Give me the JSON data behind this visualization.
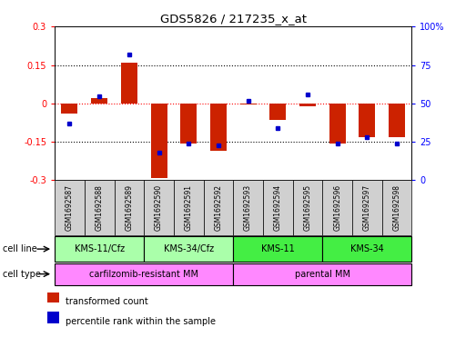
{
  "title": "GDS5826 / 217235_x_at",
  "samples": [
    "GSM1692587",
    "GSM1692588",
    "GSM1692589",
    "GSM1692590",
    "GSM1692591",
    "GSM1692592",
    "GSM1692593",
    "GSM1692594",
    "GSM1692595",
    "GSM1692596",
    "GSM1692597",
    "GSM1692598"
  ],
  "transformed_count": [
    -0.04,
    0.02,
    0.16,
    -0.29,
    -0.155,
    -0.185,
    -0.005,
    -0.065,
    -0.01,
    -0.155,
    -0.13,
    -0.13
  ],
  "percentile_rank": [
    37,
    55,
    82,
    18,
    24,
    23,
    52,
    34,
    56,
    24,
    28,
    24
  ],
  "cell_line_groups": [
    {
      "label": "KMS-11/Cfz",
      "start": 0,
      "end": 2,
      "color": "#aaffaa"
    },
    {
      "label": "KMS-34/Cfz",
      "start": 3,
      "end": 5,
      "color": "#aaffaa"
    },
    {
      "label": "KMS-11",
      "start": 6,
      "end": 8,
      "color": "#44ee44"
    },
    {
      "label": "KMS-34",
      "start": 9,
      "end": 11,
      "color": "#44ee44"
    }
  ],
  "cell_type_groups": [
    {
      "label": "carfilzomib-resistant MM",
      "start": 0,
      "end": 5,
      "color": "#ff88ff"
    },
    {
      "label": "parental MM",
      "start": 6,
      "end": 11,
      "color": "#ff88ff"
    }
  ],
  "bar_color": "#cc2200",
  "dot_color": "#0000cc",
  "ylim_left": [
    -0.3,
    0.3
  ],
  "ylim_right": [
    0,
    100
  ],
  "yticks_left": [
    -0.3,
    -0.15,
    0,
    0.15,
    0.3
  ],
  "yticks_right": [
    0,
    25,
    50,
    75,
    100
  ],
  "ytick_labels_left": [
    "-0.3",
    "-0.15",
    "0",
    "0.15",
    "0.3"
  ],
  "ytick_labels_right": [
    "0",
    "25",
    "50",
    "75",
    "100%"
  ],
  "legend_items": [
    {
      "label": "transformed count",
      "color": "#cc2200"
    },
    {
      "label": "percentile rank within the sample",
      "color": "#0000cc"
    }
  ],
  "background_color": "#ffffff",
  "plot_bg_color": "#ffffff",
  "cell_line_label": "cell line",
  "cell_type_label": "cell type",
  "sample_box_color": "#d0d0d0"
}
